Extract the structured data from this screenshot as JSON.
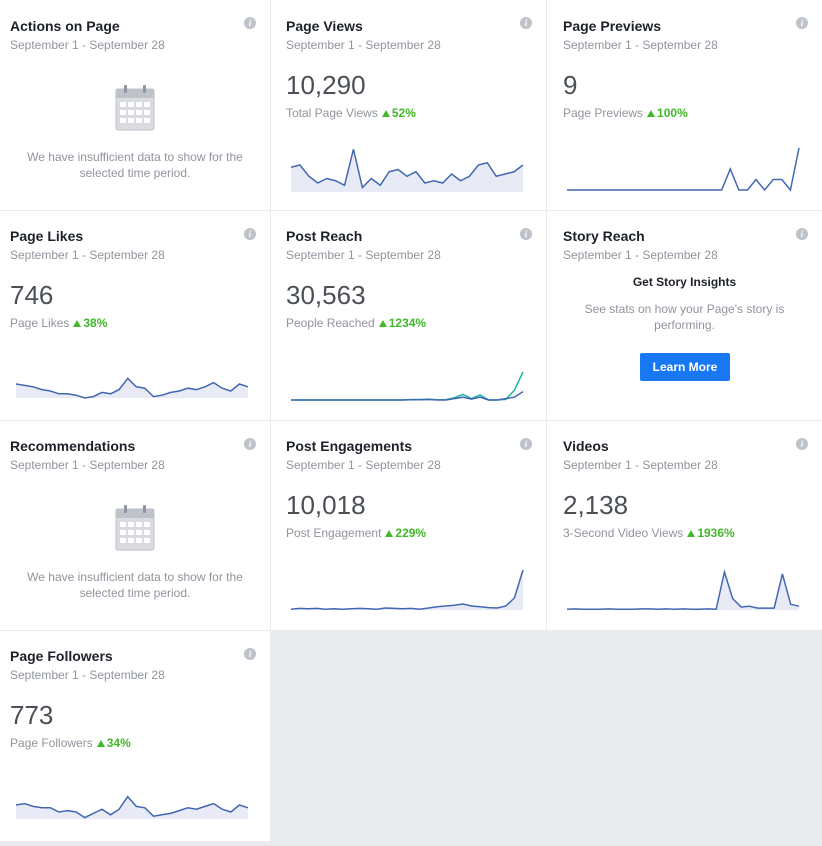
{
  "date_range": "September 1 - September 28",
  "info_glyph": "i",
  "colors": {
    "line": "#4267b2",
    "teal": "#1fb5a3",
    "fill": "#e8ebf6",
    "up": "#42b72a",
    "button": "#1877f2"
  },
  "cards": {
    "actions_on_page": {
      "title": "Actions on Page",
      "empty_text": "We have insufficient data to show for the selected time period."
    },
    "page_views": {
      "title": "Page Views",
      "value": "10,290",
      "metric_label": "Total Page Views",
      "change": "52%",
      "spark": [
        0.55,
        0.6,
        0.35,
        0.2,
        0.3,
        0.25,
        0.15,
        0.95,
        0.1,
        0.3,
        0.15,
        0.45,
        0.5,
        0.35,
        0.45,
        0.2,
        0.25,
        0.2,
        0.4,
        0.25,
        0.35,
        0.6,
        0.65,
        0.35,
        0.4,
        0.45,
        0.6
      ]
    },
    "page_previews": {
      "title": "Page Previews",
      "value": "9",
      "metric_label": "Page Previews",
      "change": "100%",
      "spark": [
        0,
        0,
        0,
        0,
        0,
        0,
        0,
        0,
        0,
        0,
        0,
        0,
        0,
        0,
        0,
        0,
        0,
        0,
        0,
        0.5,
        0,
        0,
        0.25,
        0,
        0.25,
        0.25,
        0,
        1
      ]
    },
    "page_likes": {
      "title": "Page Likes",
      "value": "746",
      "metric_label": "Page Likes",
      "change": "38%",
      "spark": [
        0.5,
        0.45,
        0.4,
        0.3,
        0.25,
        0.15,
        0.15,
        0.1,
        0,
        0.05,
        0.2,
        0.15,
        0.3,
        0.7,
        0.4,
        0.35,
        0.05,
        0.1,
        0.2,
        0.25,
        0.35,
        0.3,
        0.4,
        0.55,
        0.35,
        0.25,
        0.5,
        0.4
      ]
    },
    "post_reach": {
      "title": "Post Reach",
      "value": "30,563",
      "metric_label": "People Reached",
      "change": "1234%",
      "spark": [
        0,
        0,
        0,
        0,
        0,
        0,
        0,
        0,
        0,
        0,
        0,
        0,
        0,
        0,
        0.01,
        0.01,
        0.02,
        0,
        0,
        0.05,
        0.1,
        0.03,
        0.1,
        0,
        0,
        0.05,
        0.1,
        0.3
      ],
      "spark2": [
        0,
        0,
        0,
        0,
        0,
        0,
        0,
        0,
        0,
        0,
        0,
        0,
        0,
        0,
        0.02,
        0.02,
        0.03,
        0.01,
        0.01,
        0.08,
        0.2,
        0.05,
        0.18,
        0,
        0,
        0.02,
        0.35,
        1
      ]
    },
    "story_reach": {
      "title": "Story Reach",
      "heading": "Get Story Insights",
      "description": "See stats on how your Page's story is performing.",
      "button": "Learn More"
    },
    "recommendations": {
      "title": "Recommendations",
      "empty_text": "We have insufficient data to show for the selected time period."
    },
    "post_engagements": {
      "title": "Post Engagements",
      "value": "10,018",
      "metric_label": "Post Engagement",
      "change": "229%",
      "spark": [
        0.02,
        0.04,
        0.03,
        0.04,
        0.02,
        0.03,
        0.02,
        0.03,
        0.04,
        0.03,
        0.02,
        0.05,
        0.04,
        0.03,
        0.04,
        0.02,
        0.05,
        0.08,
        0.1,
        0.12,
        0.15,
        0.1,
        0.08,
        0.06,
        0.05,
        0.1,
        0.3,
        1
      ]
    },
    "videos": {
      "title": "Videos",
      "value": "2,138",
      "metric_label": "3-Second Video Views",
      "change": "1936%",
      "spark": [
        0.02,
        0.03,
        0.02,
        0.02,
        0.02,
        0.03,
        0.02,
        0.02,
        0.02,
        0.03,
        0.03,
        0.02,
        0.03,
        0.02,
        0.03,
        0.02,
        0.02,
        0.03,
        0.02,
        1,
        0.3,
        0.08,
        0.1,
        0.05,
        0.05,
        0.05,
        0.95,
        0.15,
        0.1
      ]
    },
    "page_followers": {
      "title": "Page Followers",
      "value": "773",
      "metric_label": "Page Followers",
      "change": "34%",
      "spark": [
        0.5,
        0.55,
        0.45,
        0.4,
        0.4,
        0.25,
        0.3,
        0.25,
        0.05,
        0.2,
        0.35,
        0.15,
        0.35,
        0.8,
        0.45,
        0.4,
        0.1,
        0.15,
        0.2,
        0.3,
        0.4,
        0.35,
        0.45,
        0.55,
        0.35,
        0.25,
        0.5,
        0.4
      ]
    }
  }
}
